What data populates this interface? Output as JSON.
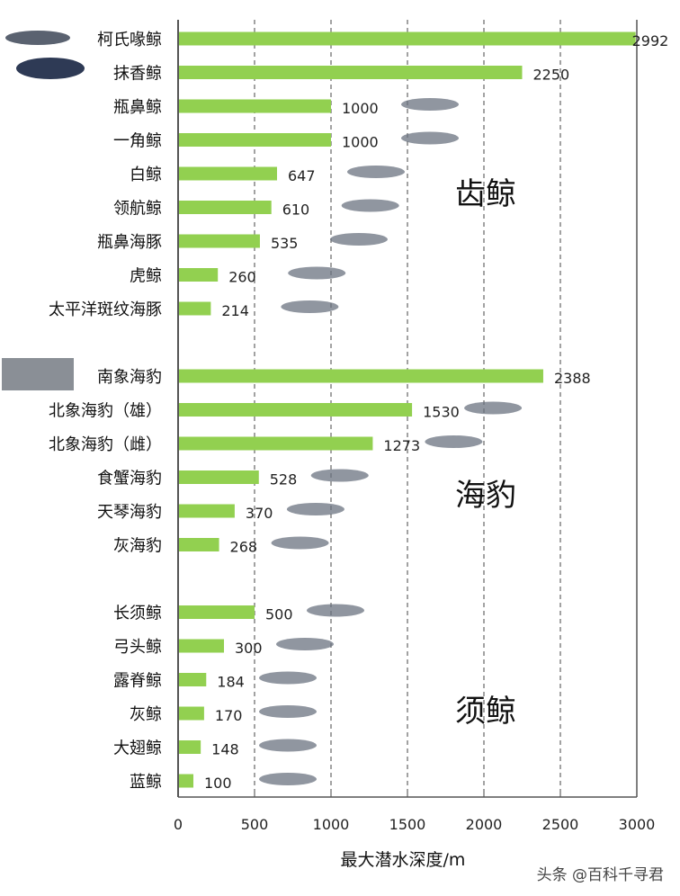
{
  "chart_data": {
    "type": "bar",
    "orientation": "horizontal",
    "xlabel": "最大潜水深度/m",
    "xlim": [
      0,
      3000
    ],
    "xticks": [
      0,
      500,
      1000,
      1500,
      2000,
      2500,
      3000
    ],
    "grid": "vertical dashed",
    "bar_color": "#92D050",
    "groups": [
      {
        "label": "齿鲸",
        "categories": [
          "柯氏喙鲸",
          "抹香鲸",
          "瓶鼻鲸",
          "一角鲸",
          "白鲸",
          "领航鲸",
          "瓶鼻海豚",
          "虎鲸",
          "太平洋斑纹海豚"
        ],
        "values": [
          2992,
          2250,
          1000,
          1000,
          647,
          610,
          535,
          260,
          214
        ]
      },
      {
        "label": "海豹",
        "categories": [
          "南象海豹",
          "北象海豹（雄）",
          "北象海豹（雌）",
          "食蟹海豹",
          "天琴海豹",
          "灰海豹"
        ],
        "values": [
          2388,
          1530,
          1273,
          528,
          370,
          268
        ]
      },
      {
        "label": "须鲸",
        "categories": [
          "长须鲸",
          "弓头鲸",
          "露脊鲸",
          "灰鲸",
          "大翅鲸",
          "蓝鲸"
        ],
        "values": [
          500,
          300,
          184,
          170,
          148,
          100
        ]
      }
    ]
  },
  "watermark": "头条 @百科千寻君"
}
